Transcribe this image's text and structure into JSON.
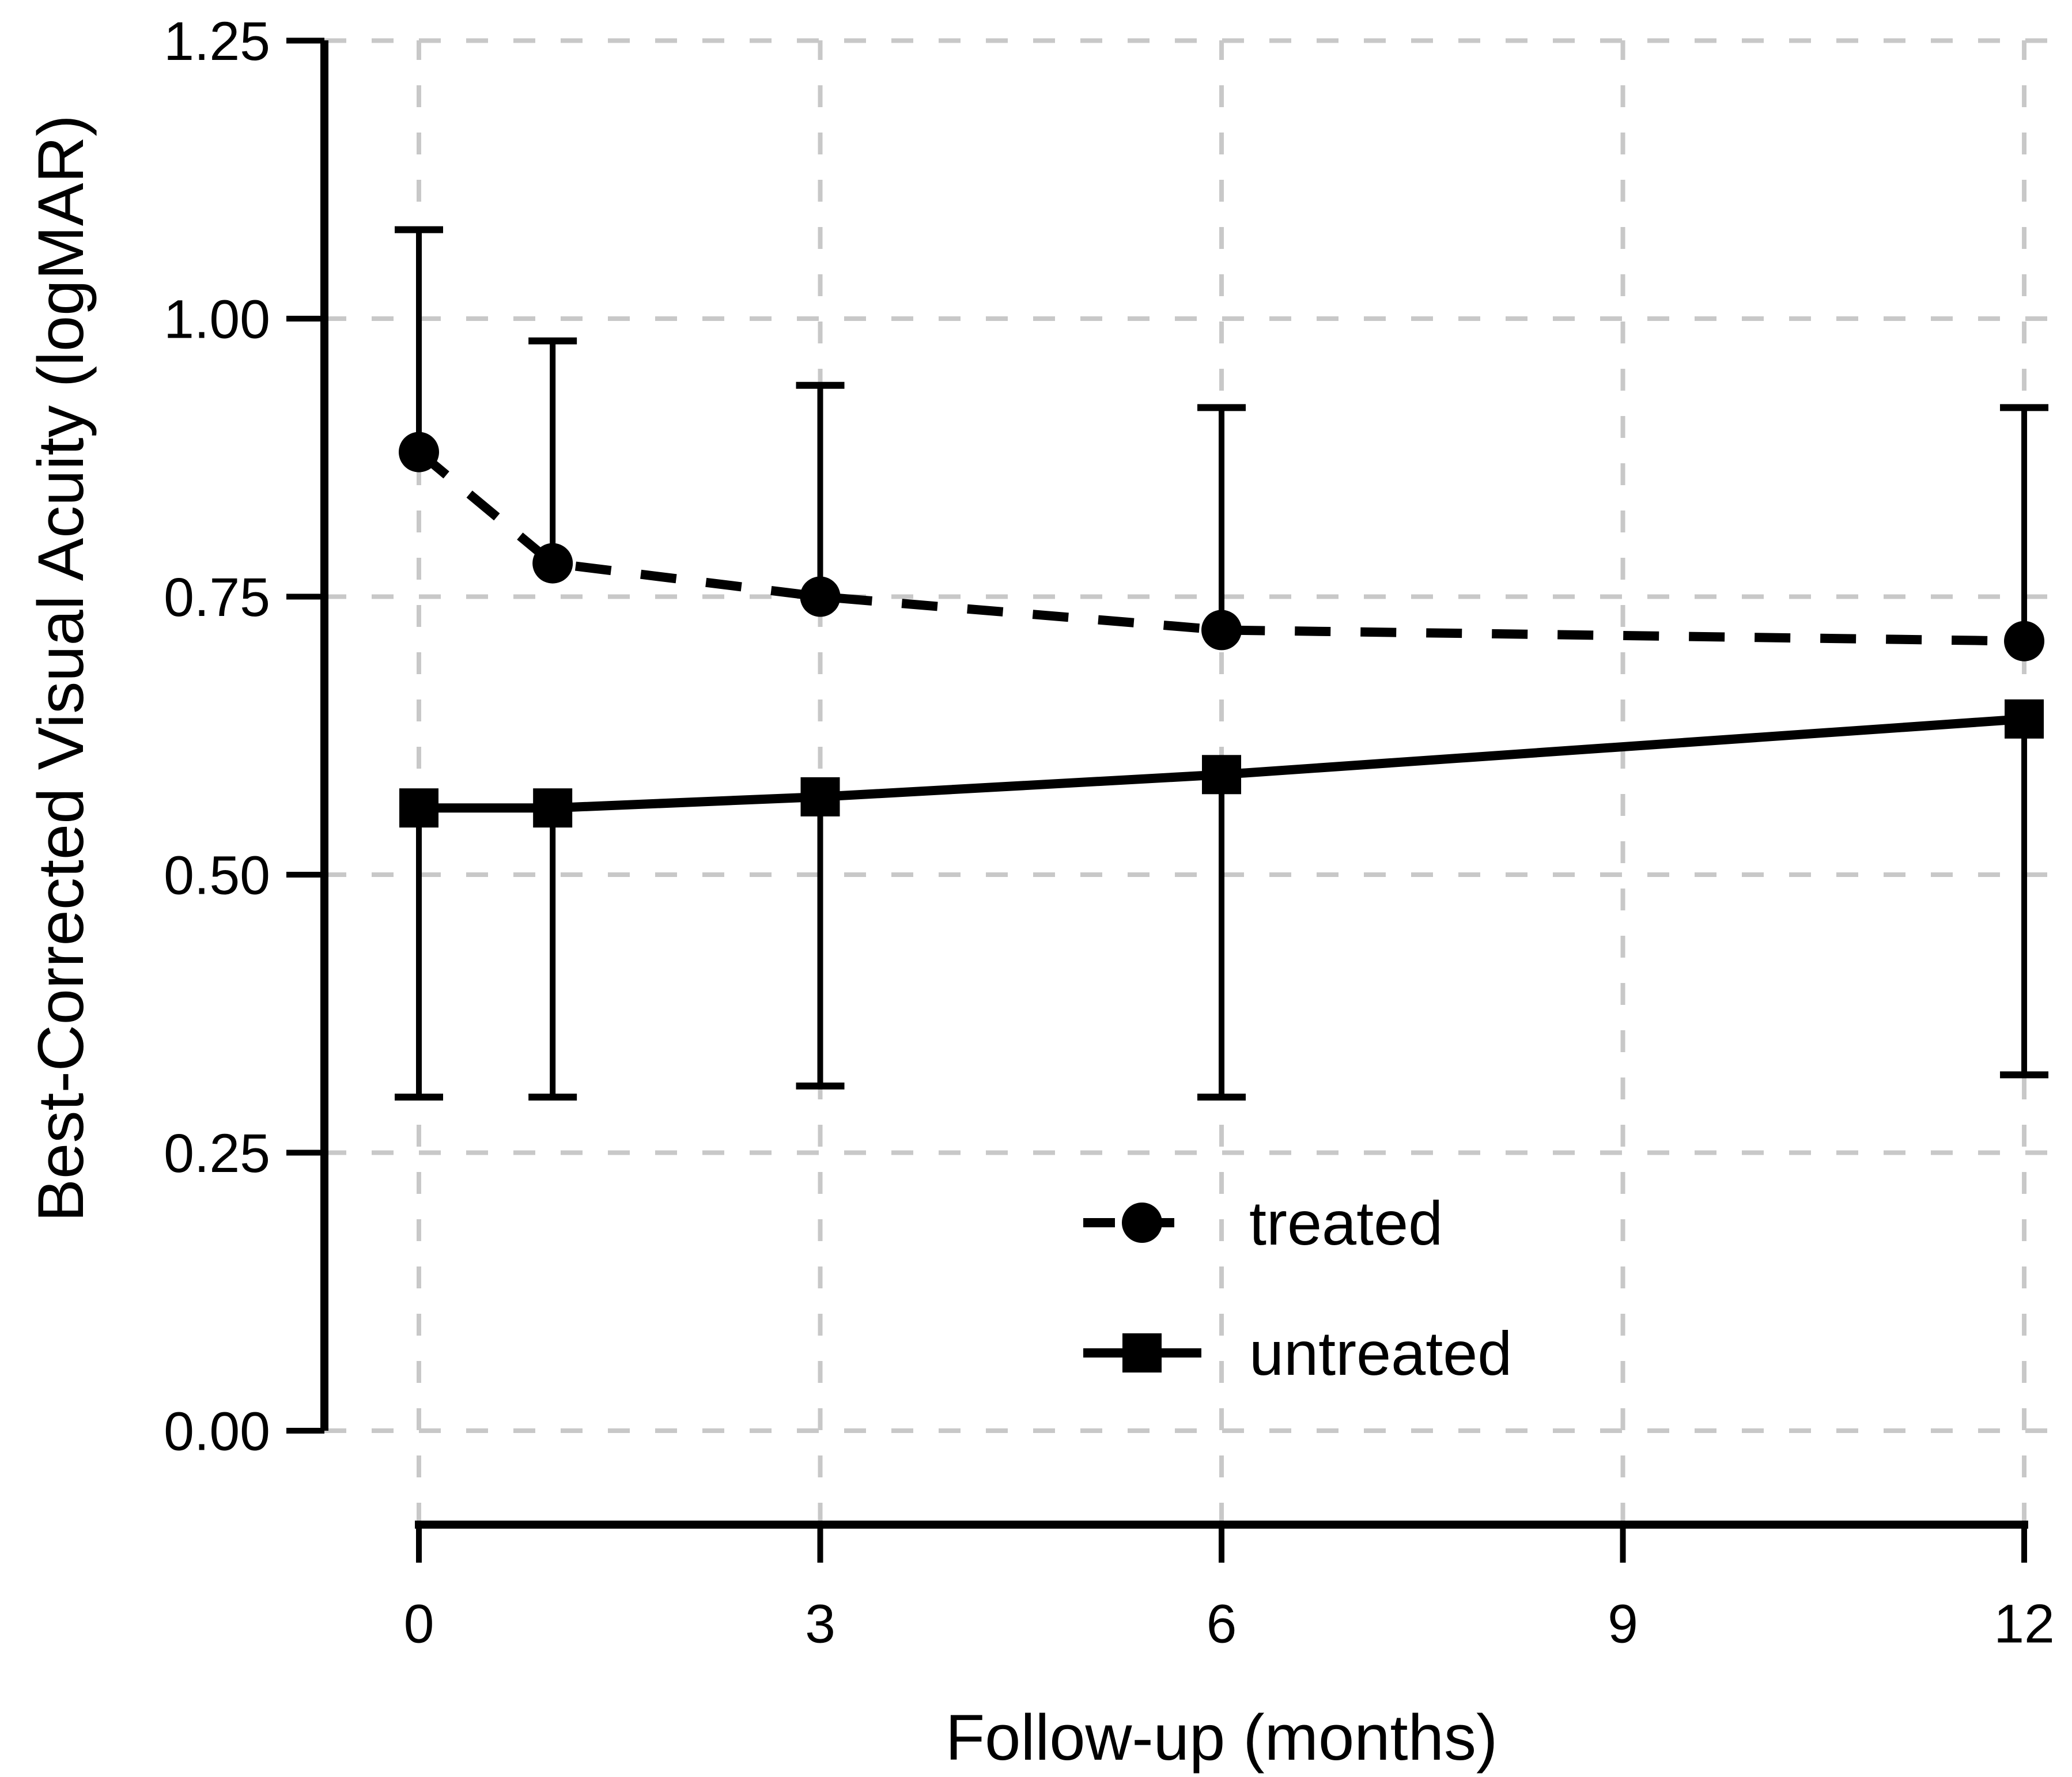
{
  "colors": {
    "series": "#000000",
    "grid": "#c8c8c8",
    "background": "#ffffff",
    "text": "#000000"
  },
  "chart_data": {
    "type": "line",
    "title": "",
    "xlabel": "Follow-up (months)",
    "ylabel": "Best-Corrected Visual Acuity (logMAR)",
    "x": [
      0,
      1,
      3,
      6,
      12
    ],
    "xlim": [
      0,
      12
    ],
    "ylim": [
      0,
      1.25
    ],
    "x_ticks": [
      0,
      3,
      6,
      9,
      12
    ],
    "y_ticks": [
      "0.00",
      "0.25",
      "0.50",
      "0.75",
      "1.00",
      "1.25"
    ],
    "grid": "dashed, both axes, light gray",
    "legend_position": "inside lower right",
    "series": [
      {
        "name": "treated",
        "marker": "circle",
        "line_style": "dashed",
        "values": [
          0.88,
          0.78,
          0.75,
          0.72,
          0.71
        ],
        "error_upper": [
          1.08,
          0.98,
          0.94,
          0.92,
          0.92
        ]
      },
      {
        "name": "untreated",
        "marker": "square",
        "line_style": "solid",
        "values": [
          0.56,
          0.56,
          0.57,
          0.59,
          0.64
        ],
        "error_lower": [
          0.3,
          0.3,
          0.31,
          0.3,
          0.32
        ]
      }
    ]
  }
}
